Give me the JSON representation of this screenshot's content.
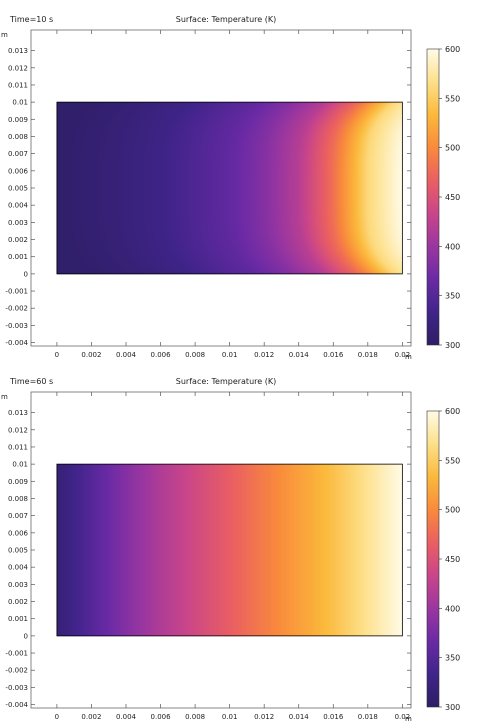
{
  "plots": [
    {
      "time_label": "Time=10 s",
      "title": "Surface: Temperature (K)",
      "axis_unit_y": "m",
      "axis_unit_x": "m",
      "x_tick_labels": [
        "0",
        "0.002",
        "0.004",
        "0.006",
        "0.008",
        "0.01",
        "0.012",
        "0.014",
        "0.016",
        "0.018",
        "0.02"
      ],
      "y_tick_labels": [
        "-0.004",
        "-0.003",
        "-0.002",
        "-0.001",
        "0",
        "0.001",
        "0.002",
        "0.003",
        "0.004",
        "0.005",
        "0.006",
        "0.007",
        "0.008",
        "0.009",
        "0.01",
        "0.011",
        "0.012",
        "0.013"
      ],
      "colorbar_tick_labels": [
        "300",
        "350",
        "400",
        "450",
        "500",
        "550",
        "600"
      ]
    },
    {
      "time_label": "Time=60 s",
      "title": "Surface: Temperature (K)",
      "axis_unit_y": "m",
      "axis_unit_x": "m",
      "x_tick_labels": [
        "0",
        "0.002",
        "0.004",
        "0.006",
        "0.008",
        "0.01",
        "0.012",
        "0.014",
        "0.016",
        "0.018",
        "0.02"
      ],
      "y_tick_labels": [
        "-0.004",
        "-0.003",
        "-0.002",
        "-0.001",
        "0",
        "0.001",
        "0.002",
        "0.003",
        "0.004",
        "0.005",
        "0.006",
        "0.007",
        "0.008",
        "0.009",
        "0.01",
        "0.011",
        "0.012",
        "0.013"
      ],
      "colorbar_tick_labels": [
        "300",
        "350",
        "400",
        "450",
        "500",
        "550",
        "600"
      ]
    }
  ],
  "chart_data": [
    {
      "type": "heatmap",
      "title": "Surface: Temperature (K)",
      "subtitle": "Time=10 s",
      "x_unit": "m",
      "y_unit": "m",
      "xlim": [
        -0.0015,
        0.0205
      ],
      "ylim": [
        -0.0042,
        0.0142
      ],
      "x_ticks": [
        0,
        0.002,
        0.004,
        0.006,
        0.008,
        0.01,
        0.012,
        0.014,
        0.016,
        0.018,
        0.02
      ],
      "y_ticks": [
        -0.004,
        -0.003,
        -0.002,
        -0.001,
        0,
        0.001,
        0.002,
        0.003,
        0.004,
        0.005,
        0.006,
        0.007,
        0.008,
        0.009,
        0.01,
        0.011,
        0.012,
        0.013
      ],
      "domain": {
        "x": [
          0,
          0.02
        ],
        "y": [
          0,
          0.01
        ]
      },
      "colorbar": {
        "min": 300,
        "max": 600,
        "ticks": [
          300,
          350,
          400,
          450,
          500,
          550,
          600
        ],
        "colormap": "inferno-like (dark purple to pale yellow)"
      },
      "temperature_profile_along_x": {
        "x": [
          0,
          0.002,
          0.004,
          0.006,
          0.008,
          0.01,
          0.012,
          0.014,
          0.016,
          0.018,
          0.02
        ],
        "T": [
          305,
          312,
          320,
          330,
          345,
          360,
          385,
          420,
          480,
          560,
          600
        ]
      },
      "notes": "Near the top and bottom corners at the right, the hot zone bends inward (rounded isotherms)."
    },
    {
      "type": "heatmap",
      "title": "Surface: Temperature (K)",
      "subtitle": "Time=60 s",
      "x_unit": "m",
      "y_unit": "m",
      "xlim": [
        -0.0015,
        0.0205
      ],
      "ylim": [
        -0.0042,
        0.0142
      ],
      "x_ticks": [
        0,
        0.002,
        0.004,
        0.006,
        0.008,
        0.01,
        0.012,
        0.014,
        0.016,
        0.018,
        0.02
      ],
      "y_ticks": [
        -0.004,
        -0.003,
        -0.002,
        -0.001,
        0,
        0.001,
        0.002,
        0.003,
        0.004,
        0.005,
        0.006,
        0.007,
        0.008,
        0.009,
        0.01,
        0.011,
        0.012,
        0.013
      ],
      "domain": {
        "x": [
          0,
          0.02
        ],
        "y": [
          0,
          0.01
        ]
      },
      "colorbar": {
        "min": 300,
        "max": 600,
        "ticks": [
          300,
          350,
          400,
          450,
          500,
          550,
          600
        ],
        "colormap": "inferno-like (dark purple to pale yellow)"
      },
      "temperature_profile_along_x": {
        "x": [
          0,
          0.002,
          0.004,
          0.006,
          0.008,
          0.01,
          0.012,
          0.014,
          0.016,
          0.018,
          0.02
        ],
        "T": [
          315,
          350,
          385,
          415,
          440,
          465,
          490,
          515,
          540,
          570,
          600
        ]
      },
      "notes": "Temperature varies almost linearly from left (cool) to right (hot), uniform in y."
    }
  ],
  "colormap_stops": [
    "#2d1e64",
    "#40248a",
    "#6a2aa5",
    "#9a36a0",
    "#c9458a",
    "#ea5f62",
    "#f98a3c",
    "#fbb93b",
    "#fde08a",
    "#fffbe6"
  ]
}
